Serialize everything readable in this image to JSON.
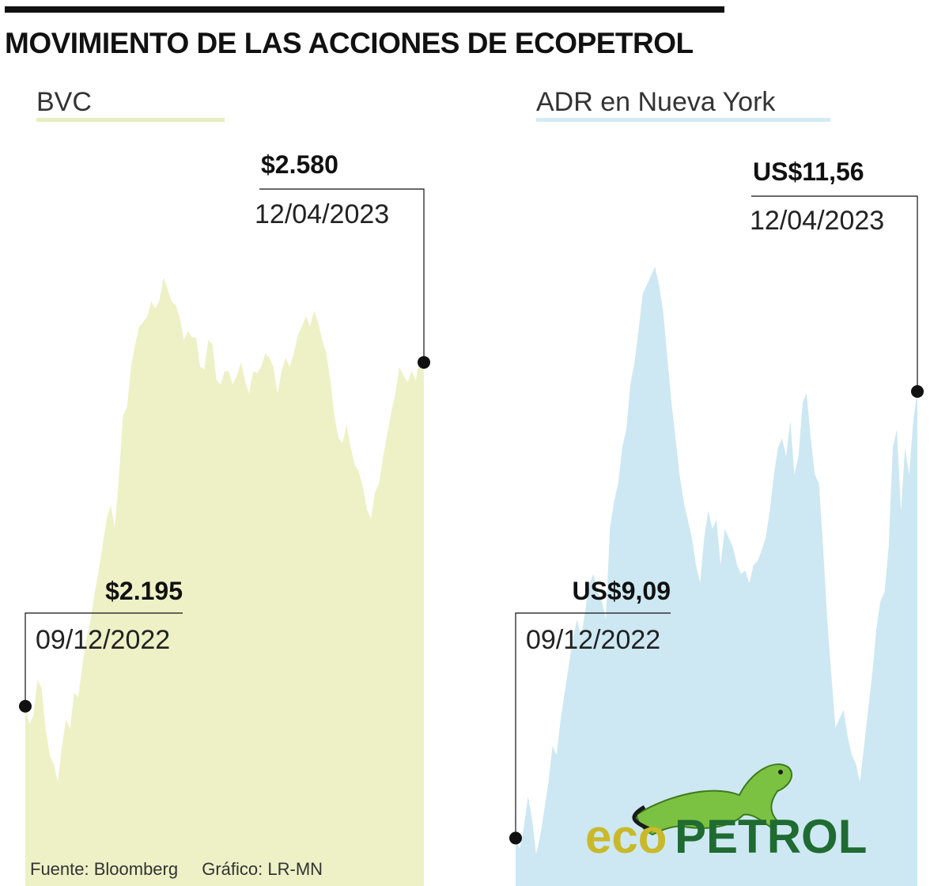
{
  "title": "MOVIMIENTO DE LAS ACCIONES DE ECOPETROL",
  "footer": {
    "source": "Fuente: Bloomberg",
    "credit": "Gráfico: LR-MN"
  },
  "logo": {
    "part1": "eco",
    "part2": "PETROL"
  },
  "colors": {
    "bvc_fill": "#eef1c6",
    "bvc_line": "#e8eebf",
    "adr_fill": "#cde8f2",
    "adr_line": "#d2ebf4",
    "text": "#111111"
  },
  "chart_data": [
    {
      "type": "area",
      "title": "BVC",
      "x_start": "09/12/2022",
      "x_end": "12/04/2023",
      "ylim": [
        2100,
        2720
      ],
      "start_point": {
        "value": "$2.195",
        "date": "09/12/2022"
      },
      "end_point": {
        "value": "$2.580",
        "date": "12/04/2023"
      },
      "values": [
        2195,
        2175,
        2185,
        2225,
        2215,
        2170,
        2140,
        2130,
        2110,
        2150,
        2180,
        2170,
        2210,
        2205,
        2240,
        2270,
        2290,
        2320,
        2345,
        2375,
        2405,
        2420,
        2395,
        2450,
        2520,
        2530,
        2575,
        2600,
        2620,
        2625,
        2632,
        2648,
        2640,
        2650,
        2675,
        2662,
        2648,
        2644,
        2630,
        2605,
        2615,
        2608,
        2608,
        2575,
        2572,
        2605,
        2600,
        2560,
        2555,
        2570,
        2570,
        2555,
        2565,
        2580,
        2560,
        2545,
        2570,
        2568,
        2575,
        2590,
        2585,
        2575,
        2545,
        2570,
        2585,
        2575,
        2590,
        2610,
        2620,
        2632,
        2620,
        2638,
        2625,
        2605,
        2590,
        2560,
        2520,
        2495,
        2490,
        2510,
        2485,
        2465,
        2458,
        2440,
        2415,
        2405,
        2435,
        2445,
        2475,
        2500,
        2525,
        2545,
        2575,
        2565,
        2558,
        2570,
        2560,
        2585,
        2580
      ]
    },
    {
      "type": "area",
      "title": "ADR en Nueva York",
      "x_start": "09/12/2022",
      "x_end": "12/04/2023",
      "ylim": [
        9.0,
        12.5
      ],
      "start_point": {
        "value": "US$9,09",
        "date": "09/12/2022"
      },
      "end_point": {
        "value": "US$11,56",
        "date": "12/04/2023"
      },
      "values": [
        9.09,
        9.03,
        9.15,
        9.32,
        9.2,
        9.0,
        9.1,
        9.25,
        9.4,
        9.6,
        9.55,
        9.75,
        9.9,
        10.05,
        10.2,
        10.3,
        10.2,
        10.35,
        10.5,
        10.55,
        10.45,
        10.4,
        10.3,
        10.8,
        10.95,
        11.05,
        11.25,
        11.35,
        11.6,
        11.72,
        11.9,
        12.1,
        12.15,
        12.2,
        12.25,
        12.15,
        12.0,
        11.75,
        11.5,
        11.3,
        11.1,
        10.95,
        10.85,
        10.75,
        10.6,
        10.5,
        10.75,
        10.9,
        10.8,
        10.85,
        10.6,
        10.8,
        10.75,
        10.7,
        10.6,
        10.55,
        10.57,
        10.5,
        10.6,
        10.62,
        10.68,
        10.75,
        10.9,
        11.1,
        11.25,
        11.3,
        11.2,
        11.4,
        11.1,
        11.2,
        11.5,
        11.55,
        11.3,
        11.1,
        11.05,
        10.7,
        10.3,
        10.0,
        9.7,
        9.75,
        9.8,
        9.65,
        9.55,
        9.5,
        9.4,
        9.6,
        9.8,
        10.0,
        10.25,
        10.4,
        10.45,
        10.7,
        11.25,
        11.35,
        10.9,
        11.25,
        11.1,
        11.4,
        11.56
      ]
    }
  ]
}
